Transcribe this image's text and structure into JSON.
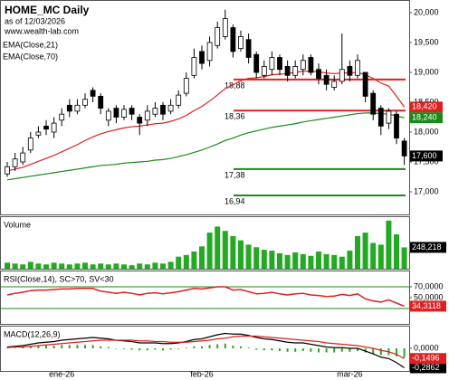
{
  "chart_data": [
    {
      "type": "candlestick",
      "title": "HOME_MC Daily",
      "subtitle": "as of 12/03/2026",
      "source": "www.wealth-lab.com",
      "categories": [
        null,
        null,
        null,
        null,
        null,
        null,
        null,
        "ene-26",
        null,
        null,
        null,
        null,
        null,
        null,
        null,
        null,
        null,
        null,
        null,
        null,
        null,
        null,
        null,
        null,
        null,
        "feb-26",
        null,
        null,
        null,
        null,
        null,
        null,
        null,
        null,
        null,
        null,
        null,
        null,
        null,
        null,
        null,
        null,
        null,
        null,
        "mar-26",
        null,
        null,
        null,
        null,
        null,
        null,
        null
      ],
      "open": [
        17300,
        17420,
        17500,
        17700,
        17950,
        18100,
        18000,
        18200,
        18450,
        18350,
        18450,
        18700,
        18600,
        18200,
        18400,
        18250,
        18400,
        18250,
        18200,
        18300,
        18450,
        18350,
        18450,
        18650,
        18950,
        19350,
        19200,
        19450,
        19600,
        19750,
        19400,
        19550,
        19300,
        18950,
        19050,
        19250,
        19100,
        18950,
        19050,
        19250,
        19050,
        18950,
        18750,
        18850,
        19100,
        18950,
        19000,
        18650,
        18400,
        18150,
        18300,
        17850
      ],
      "high": [
        17500,
        17650,
        17750,
        18000,
        18100,
        18200,
        18250,
        18400,
        18550,
        18550,
        18650,
        18750,
        18650,
        18400,
        18450,
        18450,
        18450,
        18300,
        18450,
        18500,
        18500,
        18550,
        18700,
        19000,
        19400,
        19450,
        19600,
        19850,
        20050,
        19800,
        19700,
        19650,
        19350,
        19200,
        19350,
        19300,
        19200,
        19200,
        19300,
        19300,
        19150,
        19050,
        18950,
        19650,
        19200,
        19300,
        19000,
        18700,
        18450,
        18400,
        18350,
        17900
      ],
      "low": [
        17250,
        17350,
        17450,
        17650,
        17900,
        17950,
        17900,
        18100,
        18250,
        18300,
        18400,
        18500,
        18300,
        18100,
        18150,
        18200,
        18200,
        17950,
        18100,
        18250,
        18200,
        18300,
        18400,
        18600,
        18900,
        19050,
        19100,
        19400,
        19550,
        19250,
        19350,
        19150,
        18900,
        18900,
        18950,
        18950,
        18850,
        18900,
        18950,
        18950,
        18800,
        18700,
        18700,
        18800,
        18850,
        18900,
        18500,
        18200,
        17950,
        18050,
        17800,
        17450
      ],
      "close": [
        17420,
        17550,
        17650,
        17900,
        18000,
        18050,
        18150,
        18300,
        18350,
        18450,
        18550,
        18600,
        18400,
        18350,
        18250,
        18380,
        18300,
        18150,
        18350,
        18400,
        18300,
        18450,
        18620,
        18900,
        19250,
        19150,
        19500,
        19750,
        19900,
        19350,
        19600,
        19250,
        19000,
        19100,
        19250,
        19050,
        18950,
        19100,
        19200,
        19000,
        18900,
        18800,
        18850,
        19050,
        18950,
        19200,
        18600,
        18300,
        18100,
        18350,
        17900,
        17600
      ],
      "close_last_label": "17,600",
      "series": [
        {
          "name": "EMA(Close,21)",
          "color": "#e02020",
          "last_label": "18,420",
          "values": [
            17350,
            17380,
            17410,
            17460,
            17510,
            17560,
            17610,
            17670,
            17730,
            17790,
            17860,
            17920,
            17970,
            18010,
            18040,
            18070,
            18090,
            18100,
            18120,
            18140,
            18150,
            18180,
            18220,
            18280,
            18360,
            18430,
            18520,
            18620,
            18730,
            18790,
            18860,
            18900,
            18910,
            18930,
            18960,
            18970,
            18980,
            19000,
            19020,
            19020,
            19010,
            18990,
            18980,
            18990,
            18990,
            19000,
            18960,
            18900,
            18820,
            18770,
            18600,
            18420
          ]
        },
        {
          "name": "EMA(Close,70)",
          "color": "#1a8a1a",
          "last_label": "18,240",
          "values": [
            17200,
            17220,
            17240,
            17260,
            17280,
            17300,
            17320,
            17340,
            17360,
            17380,
            17400,
            17420,
            17440,
            17450,
            17460,
            17480,
            17490,
            17500,
            17510,
            17530,
            17540,
            17560,
            17590,
            17620,
            17660,
            17700,
            17750,
            17800,
            17860,
            17900,
            17950,
            17990,
            18020,
            18050,
            18080,
            18100,
            18120,
            18140,
            18170,
            18190,
            18210,
            18230,
            18250,
            18270,
            18290,
            18310,
            18320,
            18320,
            18310,
            18300,
            18270,
            18240
          ]
        }
      ],
      "levels": [
        {
          "value": 18880,
          "label": "18,88",
          "color": "#e02020"
        },
        {
          "value": 18360,
          "label": "18,36",
          "color": "#e02020"
        },
        {
          "value": 17380,
          "label": "17,38",
          "color": "#1a8a1a"
        },
        {
          "value": 16940,
          "label": "16,94",
          "color": "#1a8a1a"
        }
      ],
      "ylim": [
        16606,
        20182
      ],
      "yticks": [
        {
          "value": 20000,
          "label": "20,000"
        },
        {
          "value": 19500,
          "label": "19,500"
        },
        {
          "value": 19000,
          "label": "19,000"
        },
        {
          "value": 18500,
          "label": "18,500"
        },
        {
          "value": 18000,
          "label": "18,000"
        },
        {
          "value": 17500,
          "label": "17,500"
        },
        {
          "value": 17000,
          "label": "17,000"
        }
      ]
    },
    {
      "type": "bar",
      "title": "Volume",
      "color": "#22aa22",
      "last_label": "248,218",
      "ylim": [
        0,
        600000
      ],
      "values": [
        70000,
        60000,
        50000,
        80000,
        60000,
        50000,
        70000,
        60000,
        50000,
        60000,
        70000,
        50000,
        60000,
        50000,
        60000,
        50000,
        40000,
        60000,
        50000,
        70000,
        60000,
        80000,
        140000,
        160000,
        200000,
        260000,
        420000,
        490000,
        440000,
        380000,
        330000,
        280000,
        250000,
        220000,
        210000,
        180000,
        160000,
        190000,
        170000,
        150000,
        200000,
        170000,
        160000,
        140000,
        210000,
        380000,
        420000,
        300000,
        280000,
        560000,
        400000,
        248218
      ]
    },
    {
      "type": "line",
      "title": "RSI(Close,14), SC>70, SV<30",
      "overbought": 70,
      "oversold": 30,
      "band_color": "#1a8a1a",
      "ylim": [
        0,
        100
      ],
      "yticks": [
        {
          "value": 70,
          "label": "70,0000"
        },
        {
          "value": 50,
          "label": "50,0000"
        },
        {
          "value": 30,
          "label": "30,0000"
        }
      ],
      "series": [
        {
          "color": "#e02020",
          "last_label": "34,3118",
          "values": [
            55,
            58,
            60,
            63,
            64,
            64,
            65,
            66,
            66,
            67,
            67,
            67,
            62,
            60,
            58,
            60,
            58,
            55,
            58,
            59,
            57,
            59,
            61,
            64,
            67,
            66,
            68,
            70,
            70,
            64,
            65,
            61,
            57,
            58,
            60,
            57,
            55,
            57,
            58,
            55,
            54,
            52,
            53,
            56,
            54,
            57,
            48,
            44,
            42,
            46,
            40,
            34.3118
          ]
        }
      ]
    },
    {
      "type": "macd",
      "title": "MACD(12,26,9)",
      "ylim": [
        -0.333,
        0.32
      ],
      "yticks": [
        {
          "value": 0,
          "label": "0,0000"
        }
      ],
      "histogram_color": "#22aa22",
      "histogram": [
        0.01,
        0.01,
        0.02,
        0.03,
        0.04,
        0.04,
        0.04,
        0.05,
        0.05,
        0.05,
        0.05,
        0.05,
        0.03,
        0.02,
        0,
        -0.01,
        -0.02,
        -0.03,
        -0.03,
        -0.02,
        -0.03,
        -0.02,
        -0.01,
        0.01,
        0.03,
        0.03,
        0.05,
        0.06,
        0.07,
        0.04,
        0.03,
        0.01,
        -0.02,
        -0.03,
        -0.03,
        -0.04,
        -0.05,
        -0.05,
        -0.04,
        -0.05,
        -0.06,
        -0.06,
        -0.06,
        -0.05,
        -0.05,
        -0.04,
        -0.06,
        -0.08,
        -0.1,
        -0.1,
        -0.12,
        -0.1366
      ],
      "series": [
        {
          "color": "#000000",
          "last_label": "-0,2862",
          "values": [
            0.02,
            0.03,
            0.04,
            0.06,
            0.08,
            0.09,
            0.1,
            0.12,
            0.13,
            0.14,
            0.15,
            0.16,
            0.15,
            0.14,
            0.12,
            0.11,
            0.1,
            0.08,
            0.08,
            0.08,
            0.07,
            0.07,
            0.08,
            0.1,
            0.13,
            0.14,
            0.17,
            0.2,
            0.22,
            0.21,
            0.21,
            0.19,
            0.16,
            0.14,
            0.13,
            0.11,
            0.09,
            0.08,
            0.08,
            0.06,
            0.04,
            0.02,
            0.01,
            0.01,
            0,
            0,
            -0.04,
            -0.08,
            -0.13,
            -0.15,
            -0.21,
            -0.2862
          ]
        },
        {
          "color": "#e02020",
          "last_label": "-0,1496",
          "values": [
            0.01,
            0.02,
            0.02,
            0.03,
            0.04,
            0.05,
            0.06,
            0.07,
            0.08,
            0.09,
            0.1,
            0.11,
            0.12,
            0.12,
            0.12,
            0.12,
            0.12,
            0.11,
            0.11,
            0.1,
            0.1,
            0.09,
            0.09,
            0.09,
            0.1,
            0.11,
            0.12,
            0.14,
            0.15,
            0.17,
            0.18,
            0.18,
            0.18,
            0.17,
            0.16,
            0.15,
            0.14,
            0.13,
            0.12,
            0.11,
            0.1,
            0.08,
            0.07,
            0.06,
            0.05,
            0.04,
            0.02,
            0,
            -0.03,
            -0.05,
            -0.09,
            -0.1496
          ]
        }
      ]
    }
  ]
}
